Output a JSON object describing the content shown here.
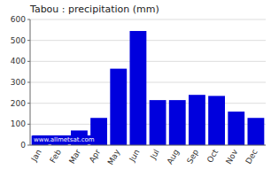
{
  "chart_data": {
    "type": "bar",
    "title": "Tabou : precipitation (mm)",
    "categories": [
      "Jan",
      "Feb",
      "Mar",
      "Apr",
      "May",
      "Jun",
      "Jul",
      "Aug",
      "Sep",
      "Oct",
      "Nov",
      "Dec"
    ],
    "values": [
      45,
      45,
      70,
      130,
      365,
      545,
      215,
      215,
      240,
      235,
      160,
      130
    ],
    "color": "#0000DD",
    "ylim": [
      0,
      600
    ],
    "yticks": [
      0,
      100,
      200,
      300,
      400,
      500,
      600
    ],
    "grid": true,
    "annotation": "www.allmetsat.com"
  }
}
